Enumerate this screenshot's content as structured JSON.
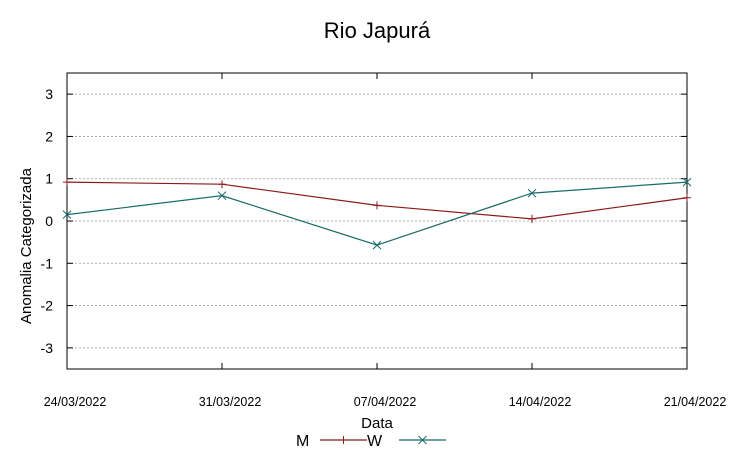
{
  "chart_data": {
    "type": "line",
    "title": "Rio Japurá",
    "xlabel": "Data",
    "ylabel": "Anomalia Categorizada",
    "categories": [
      "24/03/2022",
      "31/03/2022",
      "07/04/2022",
      "14/04/2022",
      "21/04/2022"
    ],
    "ylim": [
      -3.5,
      3.5
    ],
    "yticks": [
      3,
      2,
      1,
      0,
      -1,
      -2,
      -3
    ],
    "grid": true,
    "legend_position": "bottom-center",
    "series": [
      {
        "name": "M",
        "values": [
          0.92,
          0.87,
          0.37,
          0.05,
          0.55
        ],
        "color": "#8b1a1a",
        "marker": "plus"
      },
      {
        "name": "W",
        "values": [
          0.15,
          0.6,
          -0.57,
          0.66,
          0.92
        ],
        "color": "#1a6b6b",
        "marker": "cross"
      }
    ]
  }
}
